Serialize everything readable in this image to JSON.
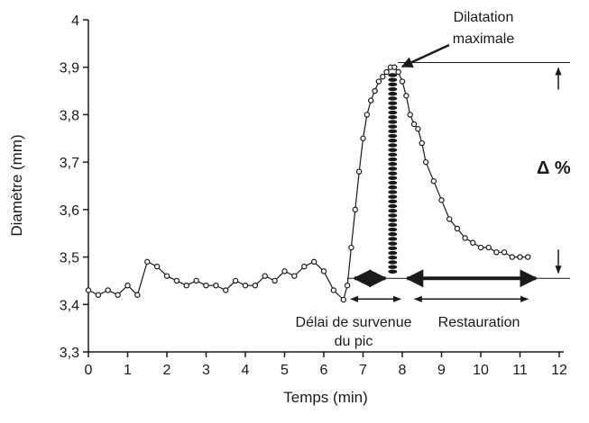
{
  "chart_data": {
    "type": "line",
    "title": "",
    "xlabel": "Temps (min)",
    "ylabel": "Diamètre (mm)",
    "xlim": [
      0,
      12
    ],
    "ylim": [
      3.3,
      4.0
    ],
    "x_ticks": [
      0,
      1,
      2,
      3,
      4,
      5,
      6,
      7,
      8,
      9,
      10,
      11,
      12
    ],
    "y_ticks": [
      3.3,
      3.4,
      3.5,
      3.6,
      3.7,
      3.8,
      3.9,
      4.0
    ],
    "y_tick_labels": [
      "3,3",
      "3,4",
      "3,5",
      "3,6",
      "3,7",
      "3,8",
      "3,9",
      "4"
    ],
    "grid": false,
    "series": [
      {
        "style": "line-with-circle-markers",
        "x": [
          0.0,
          0.25,
          0.5,
          0.75,
          1.0,
          1.25,
          1.5,
          1.75,
          2.0,
          2.25,
          2.5,
          2.75,
          3.0,
          3.25,
          3.5,
          3.75,
          4.0,
          4.25,
          4.5,
          4.75,
          5.0,
          5.25,
          5.5,
          5.75,
          6.0,
          6.25,
          6.5,
          6.6,
          6.7,
          6.8,
          6.9,
          7.0,
          7.1,
          7.2,
          7.3,
          7.4,
          7.5,
          7.6,
          7.7,
          7.8,
          7.9,
          8.0,
          8.1,
          8.2,
          8.3,
          8.4,
          8.5,
          8.6,
          8.8,
          9.0,
          9.2,
          9.4,
          9.6,
          9.8,
          10.0,
          10.2,
          10.4,
          10.6,
          10.8,
          11.0,
          11.2
        ],
        "y": [
          3.43,
          3.42,
          3.43,
          3.42,
          3.44,
          3.42,
          3.49,
          3.48,
          3.46,
          3.45,
          3.44,
          3.45,
          3.44,
          3.44,
          3.43,
          3.45,
          3.44,
          3.44,
          3.46,
          3.45,
          3.47,
          3.46,
          3.48,
          3.49,
          3.47,
          3.43,
          3.41,
          3.44,
          3.52,
          3.6,
          3.68,
          3.75,
          3.8,
          3.83,
          3.85,
          3.87,
          3.88,
          3.89,
          3.9,
          3.9,
          3.89,
          3.87,
          3.84,
          3.8,
          3.78,
          3.77,
          3.74,
          3.7,
          3.66,
          3.62,
          3.58,
          3.56,
          3.54,
          3.53,
          3.52,
          3.52,
          3.51,
          3.51,
          3.5,
          3.5,
          3.5
        ]
      }
    ],
    "annotations": {
      "peak_line1": "Dilatation",
      "peak_line2": "maximale",
      "delta": "Δ  %",
      "delay_line1": "Délai de survenue",
      "delay_line2": "du pic",
      "restoration": "Restauration"
    },
    "reference_levels": {
      "peak": 3.91,
      "baseline": 3.455
    },
    "peak_x": 7.8,
    "delay_range": [
      6.6,
      8.0
    ],
    "restoration_range": [
      8.5,
      11.5
    ]
  }
}
